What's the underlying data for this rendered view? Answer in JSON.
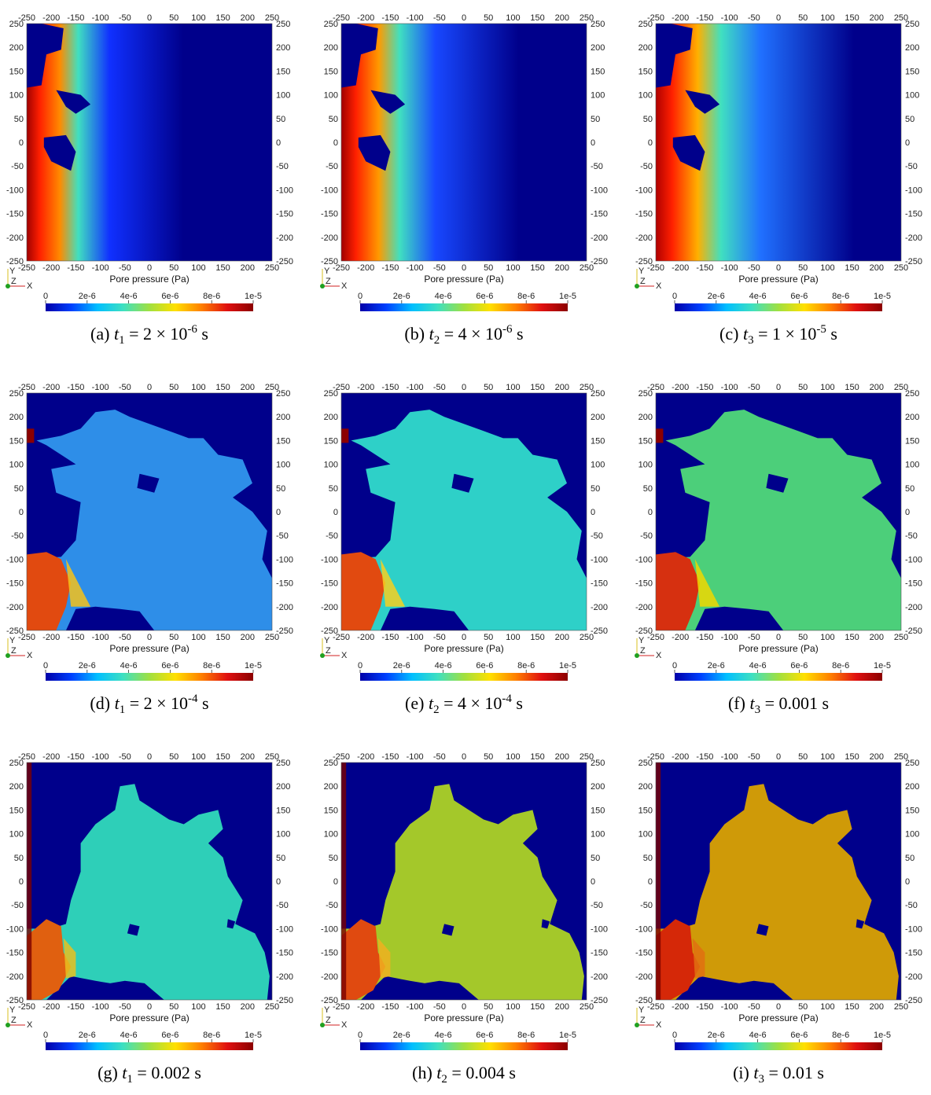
{
  "figure": {
    "colormap_label": "Pore pressure (Pa)",
    "axis_ticks": [
      "-250",
      "-200",
      "-150",
      "-100",
      "-50",
      "0",
      "50",
      "100",
      "150",
      "200",
      "250"
    ],
    "colorbar_ticks": [
      "0",
      "2e-6",
      "4e-6",
      "6e-6",
      "8e-6",
      "1e-5"
    ],
    "colorbar_stops": [
      "#0000a8",
      "#0040ff",
      "#00bfff",
      "#3fe0c0",
      "#a0e040",
      "#ffe000",
      "#ff8000",
      "#e01010",
      "#8b0000"
    ],
    "orientation_axes": {
      "y": "Y",
      "z": "Z",
      "x": "X"
    }
  },
  "chart_data": [
    {
      "type": "heatmap",
      "panel_label": "(a)",
      "caption": {
        "var": "t",
        "sub": "1",
        "pre": "= 2 × 10",
        "sup": "-6",
        "post": " s"
      },
      "xlabel": "Pore pressure (Pa)",
      "xlim": [
        -250,
        250
      ],
      "ylim": [
        -250,
        250
      ],
      "colorbar_range": [
        0,
        1e-05
      ],
      "stage": "early-front-left"
    },
    {
      "type": "heatmap",
      "panel_label": "(b)",
      "caption": {
        "var": "t",
        "sub": "2",
        "pre": "= 4 × 10",
        "sup": "-6",
        "post": " s"
      },
      "xlabel": "Pore pressure (Pa)",
      "xlim": [
        -250,
        250
      ],
      "ylim": [
        -250,
        250
      ],
      "colorbar_range": [
        0,
        1e-05
      ],
      "stage": "early-front-left"
    },
    {
      "type": "heatmap",
      "panel_label": "(c)",
      "caption": {
        "var": "t",
        "sub": "3",
        "pre": "= 1 × 10",
        "sup": "-5",
        "post": " s"
      },
      "xlabel": "Pore pressure (Pa)",
      "xlim": [
        -250,
        250
      ],
      "ylim": [
        -250,
        250
      ],
      "colorbar_range": [
        0,
        1e-05
      ],
      "stage": "early-front-left"
    },
    {
      "type": "heatmap",
      "panel_label": "(d)",
      "caption": {
        "var": "t",
        "sub": "1",
        "pre": "= 2 × 10",
        "sup": "-4",
        "post": " s"
      },
      "xlabel": "Pore pressure (Pa)",
      "xlim": [
        -250,
        250
      ],
      "ylim": [
        -250,
        250
      ],
      "colorbar_range": [
        0,
        1e-05
      ],
      "stage": "network"
    },
    {
      "type": "heatmap",
      "panel_label": "(e)",
      "caption": {
        "var": "t",
        "sub": "2",
        "pre": "= 4 × 10",
        "sup": "-4",
        "post": " s"
      },
      "xlabel": "Pore pressure (Pa)",
      "xlim": [
        -250,
        250
      ],
      "ylim": [
        -250,
        250
      ],
      "colorbar_range": [
        0,
        1e-05
      ],
      "stage": "network"
    },
    {
      "type": "heatmap",
      "panel_label": "(f)",
      "caption": {
        "var": "t",
        "sub": "3",
        "pre": "= 0.001 s",
        "sup": "",
        "post": ""
      },
      "xlabel": "Pore pressure (Pa)",
      "xlim": [
        -250,
        250
      ],
      "ylim": [
        -250,
        250
      ],
      "colorbar_range": [
        0,
        1e-05
      ],
      "stage": "network"
    },
    {
      "type": "heatmap",
      "panel_label": "(g)",
      "caption": {
        "var": "t",
        "sub": "1",
        "pre": "= 0.002 s",
        "sup": "",
        "post": ""
      },
      "xlabel": "Pore pressure (Pa)",
      "xlim": [
        -250,
        250
      ],
      "ylim": [
        -250,
        250
      ],
      "colorbar_range": [
        0,
        1e-05
      ],
      "stage": "cluster"
    },
    {
      "type": "heatmap",
      "panel_label": "(h)",
      "caption": {
        "var": "t",
        "sub": "2",
        "pre": "= 0.004 s",
        "sup": "",
        "post": ""
      },
      "xlabel": "Pore pressure (Pa)",
      "xlim": [
        -250,
        250
      ],
      "ylim": [
        -250,
        250
      ],
      "colorbar_range": [
        0,
        1e-05
      ],
      "stage": "cluster"
    },
    {
      "type": "heatmap",
      "panel_label": "(i)",
      "caption": {
        "var": "t",
        "sub": "3",
        "pre": "= 0.01 s",
        "sup": "",
        "post": ""
      },
      "xlabel": "Pore pressure (Pa)",
      "xlim": [
        -250,
        250
      ],
      "ylim": [
        -250,
        250
      ],
      "colorbar_range": [
        0,
        1e-05
      ],
      "stage": "cluster"
    }
  ],
  "panel_colors": {
    "background": "#00008b",
    "a": {
      "left": "#a00000",
      "mid": "#ff8a00",
      "fade": "#1030ff"
    },
    "b": {
      "left": "#a00000",
      "mid": "#ff9a00",
      "fade": "#1848ff"
    },
    "c": {
      "left": "#b00000",
      "mid": "#ffb000",
      "fade": "#2070ff"
    },
    "d": {
      "body": "#2e8ee8",
      "hot": "#e14a10",
      "warm": "#f6c21a"
    },
    "e": {
      "body": "#2ed0c8",
      "hot": "#e14a10",
      "warm": "#f6d020"
    },
    "f": {
      "body": "#4ccf7a",
      "hot": "#d63010",
      "warm": "#f0d800"
    },
    "g": {
      "body": "#2ecfb8",
      "hot": "#e06010",
      "warm": "#e8c020"
    },
    "h": {
      "body": "#a4c82a",
      "hot": "#e04a10",
      "warm": "#f0b020"
    },
    "i": {
      "body": "#cf9a08",
      "hot": "#d52808",
      "warm": "#e07010"
    }
  }
}
